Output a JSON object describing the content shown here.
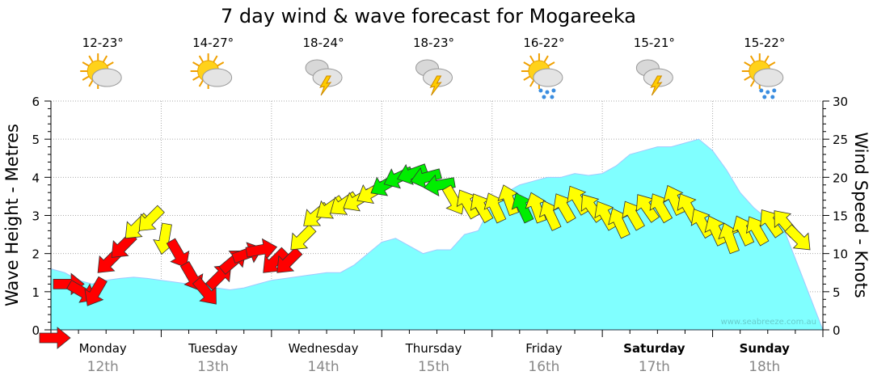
{
  "chart_data": {
    "type": "area",
    "title": "7 day wind & wave forecast for Mogareeka",
    "ylabel": "Wave Height - Metres",
    "y2label": "Wind Speed - Knots",
    "ylim": [
      0,
      6
    ],
    "y2lim": [
      0,
      30
    ],
    "yticks": [
      "0",
      "1",
      "2",
      "3",
      "4",
      "5",
      "6"
    ],
    "y2ticks": [
      "0",
      "5",
      "10",
      "15",
      "20",
      "25",
      "30"
    ],
    "watermark": "www.seabreeze.com.au",
    "days": [
      {
        "name": "Monday",
        "date": "12th",
        "temp": "12-23°",
        "icon": "sun-cloud",
        "bold": false
      },
      {
        "name": "Tuesday",
        "date": "13th",
        "temp": "14-27°",
        "icon": "sun-cloud",
        "bold": false
      },
      {
        "name": "Wednesday",
        "date": "14th",
        "temp": "18-24°",
        "icon": "cloud-lightning",
        "bold": false
      },
      {
        "name": "Thursday",
        "date": "15th",
        "temp": "18-23°",
        "icon": "cloud-lightning",
        "bold": false
      },
      {
        "name": "Friday",
        "date": "16th",
        "temp": "16-22°",
        "icon": "sun-cloud-rain",
        "bold": false
      },
      {
        "name": "Saturday",
        "date": "17th",
        "temp": "15-21°",
        "icon": "cloud-lightning",
        "bold": true
      },
      {
        "name": "Sunday",
        "date": "18th",
        "temp": "15-22°",
        "icon": "sun-cloud-rain",
        "bold": true
      }
    ],
    "wave_series": {
      "name": "Wave Height (m)",
      "interval_hours": 3,
      "color": "#80ffff",
      "values": [
        1.6,
        1.5,
        1.3,
        1.2,
        1.3,
        1.35,
        1.38,
        1.35,
        1.3,
        1.25,
        1.2,
        1.15,
        1.1,
        1.05,
        1.1,
        1.2,
        1.3,
        1.35,
        1.4,
        1.45,
        1.5,
        1.5,
        1.7,
        2.0,
        2.3,
        2.4,
        2.2,
        2.0,
        2.1,
        2.1,
        2.5,
        2.6,
        3.3,
        3.6,
        3.8,
        3.9,
        4.0,
        4.0,
        4.1,
        4.05,
        4.1,
        4.3,
        4.6,
        4.7,
        4.8,
        4.8,
        4.9,
        5.0,
        4.7,
        4.2,
        3.6,
        3.2,
        2.9,
        2.8
      ]
    },
    "wind_series": {
      "name": "Wind (knots)",
      "interval_hours": 3,
      "speed": [
        0,
        6,
        5,
        5,
        9,
        11,
        13.5,
        14.5,
        12,
        10,
        7,
        5,
        7,
        9,
        10,
        10.5,
        9,
        9,
        12,
        15,
        16,
        16.5,
        17,
        18,
        19,
        20,
        20.5,
        20,
        19,
        17,
        16.5,
        16,
        16,
        17,
        16,
        16,
        15,
        16,
        17,
        16,
        15,
        14,
        15,
        16,
        16,
        17,
        16,
        14,
        13,
        12,
        13,
        13,
        14,
        14,
        12
      ],
      "direction_deg": [
        0,
        0,
        30,
        120,
        135,
        135,
        135,
        135,
        100,
        60,
        60,
        50,
        -45,
        -40,
        -20,
        -10,
        135,
        135,
        135,
        140,
        145,
        145,
        150,
        150,
        150,
        155,
        160,
        165,
        170,
        60,
        -120,
        -120,
        -115,
        -110,
        -115,
        -110,
        -115,
        -120,
        -120,
        -125,
        -120,
        -115,
        -120,
        -125,
        -120,
        -115,
        -120,
        -120,
        -115,
        -110,
        -115,
        -120,
        -125,
        -130,
        45
      ],
      "color": [
        "red",
        "red",
        "red",
        "red",
        "red",
        "red",
        "yellow",
        "yellow",
        "yellow",
        "red",
        "red",
        "red",
        "red",
        "red",
        "red",
        "red",
        "red",
        "red",
        "yellow",
        "yellow",
        "yellow",
        "yellow",
        "yellow",
        "yellow",
        "green",
        "green",
        "green",
        "green",
        "green",
        "yellow",
        "yellow",
        "yellow",
        "yellow",
        "yellow",
        "green",
        "yellow",
        "yellow",
        "yellow",
        "yellow",
        "yellow",
        "yellow",
        "yellow",
        "yellow",
        "yellow",
        "yellow",
        "yellow",
        "yellow",
        "yellow",
        "yellow",
        "yellow",
        "yellow",
        "yellow",
        "yellow",
        "yellow",
        "yellow"
      ]
    },
    "colors": {
      "red": "#ff0000",
      "yellow": "#ffff00",
      "green": "#00ee00",
      "wave": "#80ffff",
      "wave_line": "#a0c8ff"
    }
  }
}
